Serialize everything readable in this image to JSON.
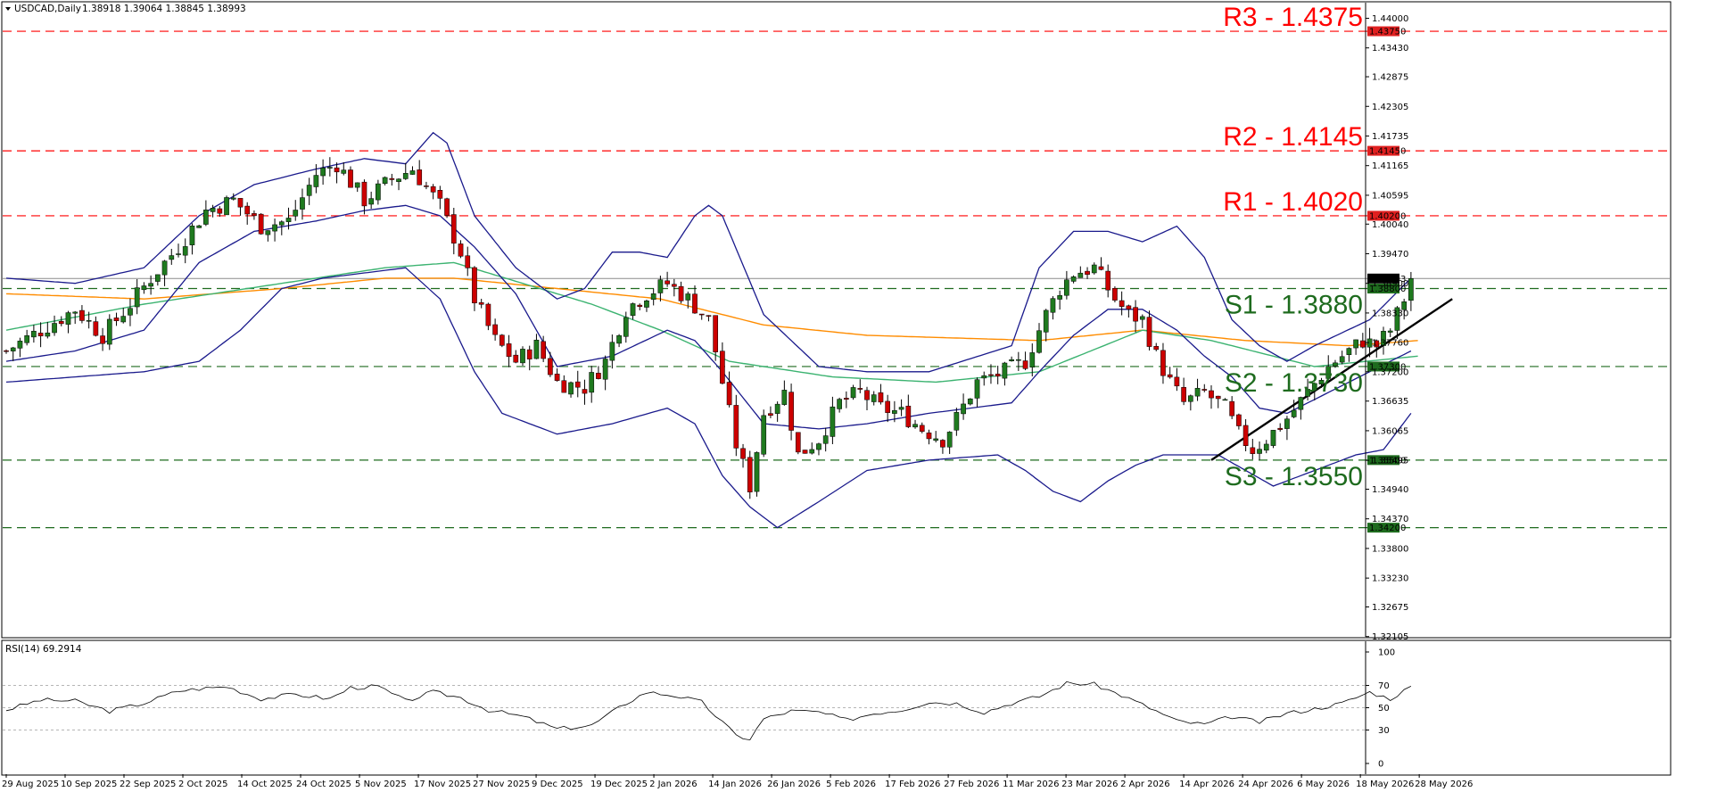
{
  "header": {
    "symbol": "USDCAD,Daily",
    "ohlc": "1.38918 1.39064 1.38845 1.38993"
  },
  "rsi_header": "RSI(14) 69.2914",
  "levels": [
    {
      "label": "R3 - 1.4375",
      "price": 1.4375,
      "tag": "1.43750",
      "color": "#ff0000",
      "style": "dashed"
    },
    {
      "label": "R2 - 1.4145",
      "price": 1.4145,
      "tag": "1.41450",
      "color": "#ff0000",
      "style": "dashed"
    },
    {
      "label": "R1 - 1.4020",
      "price": 1.402,
      "tag": "1.40200",
      "color": "#ff0000",
      "style": "dashed"
    },
    {
      "label": "S1 - 1.3880",
      "price": 1.388,
      "tag": "1.38800",
      "color": "#1e6b1e",
      "style": "dashed"
    },
    {
      "label": "S2 - 1.3730",
      "price": 1.373,
      "tag": "1.37300",
      "color": "#1e6b1e",
      "style": "dashed"
    },
    {
      "label": "S3 - 1.3550",
      "price": 1.355,
      "tag": "1.35500",
      "color": "#1e6b1e",
      "style": "dashed"
    },
    {
      "label": "",
      "price": 1.342,
      "tag": "1.34200",
      "color": "#1e6b1e",
      "style": "dashed"
    }
  ],
  "current_price": {
    "price": 1.38993,
    "tag": "1.38993"
  },
  "colors": {
    "bull": "#1f7a1f",
    "bear": "#cc0000",
    "bollinger": "#1a1a8c",
    "ma_fast": "#3cb371",
    "ma_slow": "#ff8c00",
    "trendline": "#000000",
    "resistance": "#ff0000",
    "support": "#1e6b1e"
  },
  "chart_data": [
    {
      "type": "candlestick",
      "title": "USDCAD,Daily",
      "ylim": [
        1.321,
        1.443
      ],
      "y_ticks": [
        "1.44000",
        "1.43430",
        "1.42875",
        "1.42305",
        "1.41735",
        "1.41165",
        "1.40595",
        "1.40040",
        "1.39470",
        "1.38900",
        "1.38330",
        "1.37760",
        "1.37200",
        "1.36635",
        "1.36065",
        "1.35495",
        "1.34940",
        "1.34370",
        "1.33800",
        "1.33230",
        "1.32675",
        "1.32105"
      ],
      "x_labels": [
        "29 Aug 2025",
        "10 Sep 2025",
        "22 Sep 2025",
        "2 Oct 2025",
        "14 Oct 2025",
        "24 Oct 2025",
        "5 Nov 2025",
        "17 Nov 2025",
        "27 Nov 2025",
        "9 Dec 2025",
        "19 Dec 2025",
        "2 Jan 2026",
        "14 Jan 2026",
        "26 Jan 2026",
        "5 Feb 2026",
        "17 Feb 2026",
        "27 Feb 2026",
        "11 Mar 2026",
        "23 Mar 2026",
        "2 Apr 2026",
        "14 Apr 2026",
        "24 Apr 2026",
        "6 May 2026",
        "18 May 2026",
        "28 May 2026"
      ],
      "close_path": [
        [
          0,
          1.376
        ],
        [
          5,
          1.38
        ],
        [
          10,
          1.384
        ],
        [
          14,
          1.379
        ],
        [
          18,
          1.385
        ],
        [
          21,
          1.39
        ],
        [
          25,
          1.396
        ],
        [
          29,
          1.403
        ],
        [
          33,
          1.405
        ],
        [
          37,
          1.4
        ],
        [
          41,
          1.401
        ],
        [
          45,
          1.41
        ],
        [
          48,
          1.412
        ],
        [
          52,
          1.405
        ],
        [
          56,
          1.409
        ],
        [
          59,
          1.411
        ],
        [
          63,
          1.404
        ],
        [
          66,
          1.395
        ],
        [
          68,
          1.386
        ],
        [
          71,
          1.378
        ],
        [
          74,
          1.374
        ],
        [
          77,
          1.377
        ],
        [
          80,
          1.37
        ],
        [
          84,
          1.369
        ],
        [
          87,
          1.374
        ],
        [
          90,
          1.384
        ],
        [
          93,
          1.387
        ],
        [
          96,
          1.389
        ],
        [
          99,
          1.386
        ],
        [
          102,
          1.382
        ],
        [
          104,
          1.37
        ],
        [
          106,
          1.358
        ],
        [
          108,
          1.35
        ],
        [
          110,
          1.364
        ],
        [
          113,
          1.368
        ],
        [
          115,
          1.356
        ],
        [
          118,
          1.359
        ],
        [
          121,
          1.366
        ],
        [
          124,
          1.368
        ],
        [
          127,
          1.365
        ],
        [
          130,
          1.364
        ],
        [
          133,
          1.361
        ],
        [
          136,
          1.359
        ],
        [
          138,
          1.363
        ],
        [
          141,
          1.37
        ],
        [
          145,
          1.372
        ],
        [
          148,
          1.374
        ],
        [
          151,
          1.383
        ],
        [
          153,
          1.388
        ],
        [
          155,
          1.391
        ],
        [
          158,
          1.392
        ],
        [
          161,
          1.386
        ],
        [
          163,
          1.383
        ],
        [
          165,
          1.382
        ],
        [
          167,
          1.375
        ],
        [
          169,
          1.37
        ],
        [
          171,
          1.366
        ],
        [
          174,
          1.368
        ],
        [
          177,
          1.365
        ],
        [
          179,
          1.36
        ],
        [
          181,
          1.357
        ],
        [
          183,
          1.359
        ],
        [
          186,
          1.363
        ],
        [
          189,
          1.368
        ],
        [
          192,
          1.373
        ],
        [
          195,
          1.376
        ],
        [
          197,
          1.378
        ],
        [
          199,
          1.377
        ],
        [
          201,
          1.38
        ],
        [
          203,
          1.386
        ],
        [
          204,
          1.3899
        ]
      ],
      "ma_fast_path": [
        [
          0,
          1.38
        ],
        [
          20,
          1.385
        ],
        [
          40,
          1.389
        ],
        [
          55,
          1.392
        ],
        [
          65,
          1.393
        ],
        [
          75,
          1.389
        ],
        [
          85,
          1.385
        ],
        [
          95,
          1.38
        ],
        [
          105,
          1.374
        ],
        [
          120,
          1.371
        ],
        [
          135,
          1.37
        ],
        [
          150,
          1.372
        ],
        [
          165,
          1.38
        ],
        [
          175,
          1.378
        ],
        [
          190,
          1.373
        ],
        [
          205,
          1.375
        ]
      ],
      "ma_slow_path": [
        [
          0,
          1.387
        ],
        [
          20,
          1.386
        ],
        [
          40,
          1.388
        ],
        [
          55,
          1.39
        ],
        [
          65,
          1.39
        ],
        [
          80,
          1.388
        ],
        [
          95,
          1.386
        ],
        [
          110,
          1.381
        ],
        [
          125,
          1.379
        ],
        [
          150,
          1.378
        ],
        [
          165,
          1.38
        ],
        [
          180,
          1.378
        ],
        [
          195,
          1.377
        ],
        [
          205,
          1.378
        ]
      ],
      "bb_upper_path": [
        [
          0,
          1.39
        ],
        [
          10,
          1.389
        ],
        [
          20,
          1.392
        ],
        [
          28,
          1.402
        ],
        [
          36,
          1.408
        ],
        [
          45,
          1.411
        ],
        [
          52,
          1.413
        ],
        [
          58,
          1.412
        ],
        [
          62,
          1.418
        ],
        [
          64,
          1.416
        ],
        [
          68,
          1.402
        ],
        [
          74,
          1.392
        ],
        [
          80,
          1.386
        ],
        [
          84,
          1.388
        ],
        [
          88,
          1.395
        ],
        [
          92,
          1.395
        ],
        [
          96,
          1.394
        ],
        [
          100,
          1.402
        ],
        [
          102,
          1.404
        ],
        [
          104,
          1.402
        ],
        [
          110,
          1.383
        ],
        [
          118,
          1.373
        ],
        [
          125,
          1.372
        ],
        [
          134,
          1.372
        ],
        [
          146,
          1.377
        ],
        [
          150,
          1.392
        ],
        [
          155,
          1.399
        ],
        [
          160,
          1.399
        ],
        [
          165,
          1.397
        ],
        [
          170,
          1.4
        ],
        [
          174,
          1.394
        ],
        [
          178,
          1.382
        ],
        [
          182,
          1.377
        ],
        [
          186,
          1.374
        ],
        [
          190,
          1.377
        ],
        [
          198,
          1.382
        ],
        [
          204,
          1.39
        ]
      ],
      "bb_mid_path": [
        [
          0,
          1.374
        ],
        [
          10,
          1.376
        ],
        [
          20,
          1.38
        ],
        [
          28,
          1.393
        ],
        [
          36,
          1.399
        ],
        [
          45,
          1.401
        ],
        [
          52,
          1.403
        ],
        [
          58,
          1.404
        ],
        [
          63,
          1.402
        ],
        [
          68,
          1.396
        ],
        [
          74,
          1.387
        ],
        [
          80,
          1.373
        ],
        [
          88,
          1.375
        ],
        [
          96,
          1.38
        ],
        [
          100,
          1.378
        ],
        [
          104,
          1.372
        ],
        [
          110,
          1.362
        ],
        [
          118,
          1.361
        ],
        [
          125,
          1.362
        ],
        [
          134,
          1.364
        ],
        [
          146,
          1.366
        ],
        [
          150,
          1.372
        ],
        [
          155,
          1.379
        ],
        [
          160,
          1.384
        ],
        [
          165,
          1.384
        ],
        [
          170,
          1.38
        ],
        [
          174,
          1.375
        ],
        [
          178,
          1.371
        ],
        [
          182,
          1.365
        ],
        [
          186,
          1.364
        ],
        [
          192,
          1.368
        ],
        [
          198,
          1.372
        ],
        [
          204,
          1.376
        ]
      ],
      "bb_lower_path": [
        [
          0,
          1.37
        ],
        [
          10,
          1.371
        ],
        [
          20,
          1.372
        ],
        [
          28,
          1.374
        ],
        [
          34,
          1.38
        ],
        [
          40,
          1.388
        ],
        [
          46,
          1.39
        ],
        [
          52,
          1.391
        ],
        [
          58,
          1.392
        ],
        [
          63,
          1.386
        ],
        [
          68,
          1.372
        ],
        [
          72,
          1.364
        ],
        [
          80,
          1.36
        ],
        [
          88,
          1.362
        ],
        [
          96,
          1.365
        ],
        [
          100,
          1.362
        ],
        [
          104,
          1.352
        ],
        [
          108,
          1.346
        ],
        [
          112,
          1.342
        ],
        [
          118,
          1.347
        ],
        [
          125,
          1.353
        ],
        [
          134,
          1.355
        ],
        [
          144,
          1.356
        ],
        [
          148,
          1.353
        ],
        [
          152,
          1.349
        ],
        [
          156,
          1.347
        ],
        [
          160,
          1.351
        ],
        [
          164,
          1.354
        ],
        [
          168,
          1.356
        ],
        [
          172,
          1.356
        ],
        [
          176,
          1.356
        ],
        [
          180,
          1.353
        ],
        [
          184,
          1.35
        ],
        [
          188,
          1.352
        ],
        [
          192,
          1.354
        ],
        [
          196,
          1.356
        ],
        [
          200,
          1.357
        ],
        [
          204,
          1.364
        ]
      ],
      "trendline": [
        [
          175,
          1.355
        ],
        [
          210,
          1.386
        ]
      ]
    },
    {
      "type": "line",
      "title": "RSI(14) 69.2914",
      "ylim": [
        0,
        100
      ],
      "y_ticks": [
        "100",
        "70",
        "50",
        "30",
        "0"
      ],
      "levels": [
        70,
        50,
        30
      ],
      "x_index": [
        0,
        5,
        10,
        15,
        20,
        25,
        28,
        32,
        37,
        42,
        47,
        50,
        54,
        58,
        62,
        66,
        70,
        75,
        80,
        85,
        90,
        93,
        97,
        101,
        104,
        106,
        108,
        110,
        114,
        118,
        122,
        126,
        130,
        134,
        138,
        142,
        146,
        150,
        154,
        158,
        162,
        166,
        170,
        174,
        178,
        182,
        186,
        190,
        194,
        198,
        201,
        204
      ],
      "values": [
        48,
        57,
        56,
        47,
        54,
        65,
        67,
        69,
        58,
        62,
        58,
        68,
        69,
        56,
        64,
        59,
        48,
        42,
        31,
        34,
        54,
        64,
        61,
        55,
        37,
        25,
        22,
        40,
        47,
        46,
        39,
        45,
        48,
        55,
        54,
        46,
        54,
        60,
        72,
        71,
        61,
        50,
        38,
        35,
        42,
        37,
        45,
        49,
        54,
        64,
        58,
        69
      ]
    }
  ]
}
